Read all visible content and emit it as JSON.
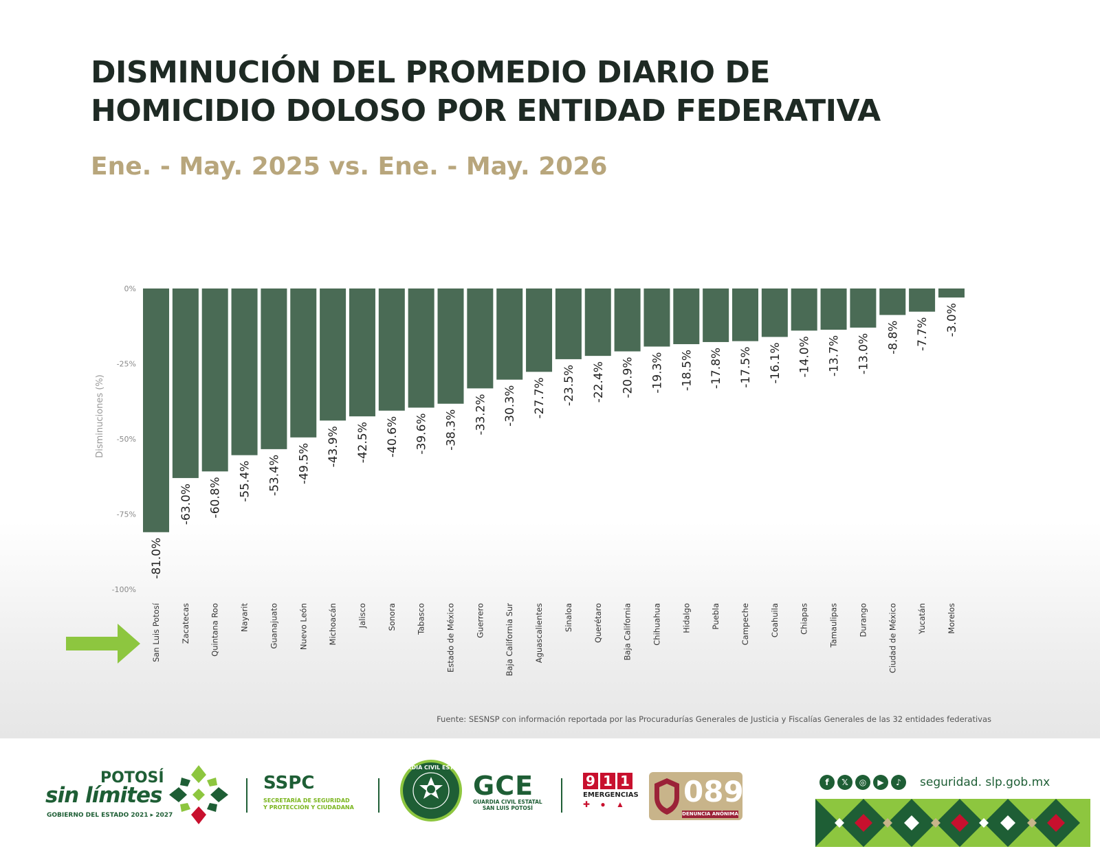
{
  "title_line1": "DISMINUCIÓN DEL PROMEDIO DIARIO DE",
  "title_line2": "HOMICIDIO DOLOSO POR ENTIDAD FEDERATIVA",
  "subtitle": "Ene. - May. 2025 vs. Ene. - May. 2026",
  "colors": {
    "bar": "#4a6b55",
    "title": "#1e2a24",
    "subtitle": "#b8a67c",
    "arrow": "#8dc63f",
    "brand_green": "#1e5e35"
  },
  "chart_data": {
    "type": "bar",
    "title": "DISMINUCIÓN DEL PROMEDIO DIARIO DE HOMICIDIO DOLOSO POR ENTIDAD FEDERATIVA",
    "subtitle": "Ene. - May. 2025 vs. Ene. - May. 2026",
    "ylabel": "Disminuciones (%)",
    "xlabel": "",
    "ylim": [
      -100,
      0
    ],
    "yticks": [
      0,
      -25,
      -50,
      -75,
      -100
    ],
    "ytick_labels": [
      "0%",
      "-25%",
      "-50%",
      "-75%",
      "-100%"
    ],
    "grid": false,
    "categories": [
      "San Luis Potosí",
      "Zacatecas",
      "Quintana Roo",
      "Nayarit",
      "Guanajuato",
      "Nuevo León",
      "Michoacán",
      "Jalisco",
      "Sonora",
      "Tabasco",
      "Estado de México",
      "Guerrero",
      "Baja California Sur",
      "Aguascalientes",
      "Sinaloa",
      "Querétaro",
      "Baja California",
      "Chihuahua",
      "Hidalgo",
      "Puebla",
      "Campeche",
      "Coahuila",
      "Chiapas",
      "Tamaulipas",
      "Durango",
      "Ciudad de México",
      "Yucatán",
      "Morelos"
    ],
    "values": [
      -81.0,
      -63.0,
      -60.8,
      -55.4,
      -53.4,
      -49.5,
      -43.9,
      -42.5,
      -40.6,
      -39.6,
      -38.3,
      -33.2,
      -30.3,
      -27.7,
      -23.5,
      -22.4,
      -20.9,
      -19.3,
      -18.5,
      -17.8,
      -17.5,
      -16.1,
      -14.0,
      -13.7,
      -13.0,
      -8.8,
      -7.7,
      -3.0
    ],
    "value_labels": [
      "-81.0%",
      "-63.0%",
      "-60.8%",
      "-55.4%",
      "-53.4%",
      "-49.5%",
      "-43.9%",
      "-42.5%",
      "-40.6%",
      "-39.6%",
      "-38.3%",
      "-33.2%",
      "-30.3%",
      "-27.7%",
      "-23.5%",
      "-22.4%",
      "-20.9%",
      "-19.3%",
      "-18.5%",
      "-17.8%",
      "-17.5%",
      "-16.1%",
      "-14.0%",
      "-13.7%",
      "-13.0%",
      "-8.8%",
      "-7.7%",
      "-3.0%"
    ],
    "highlight": "San Luis Potosí"
  },
  "source": "Fuente: SESNSP con información reportada por las Procuradurías Generales de Justicia y Fiscalías Generales de las 32 entidades federativas",
  "footer": {
    "potosi": "POTOSÍ",
    "sin_limites": "sin límites",
    "gobierno": "GOBIERNO DEL ESTADO 2021 ▸ 2027",
    "sspc_title": "SSPC",
    "sspc_sub1": "SECRETARÍA DE SEGURIDAD",
    "sspc_sub2": "Y PROTECCIÓN Y CIUDADANA",
    "gce_title": "GCE",
    "gce_sub1": "GUARDIA CIVIL ESTATAL",
    "gce_sub2": "SAN LUIS POTOSÍ",
    "badge_text": "GUARDIA CIVIL ESTATAL",
    "e911_d1": "9",
    "e911_d2": "1",
    "e911_d3": "1",
    "e911_label": "EMERGENCIAS",
    "num089": "089",
    "denuncia": "DENUNCIA ANÓNIMA",
    "website": "seguridad. slp.gob.mx",
    "social_icons": [
      "facebook-icon",
      "x-icon",
      "instagram-icon",
      "youtube-icon",
      "tiktok-icon"
    ]
  }
}
